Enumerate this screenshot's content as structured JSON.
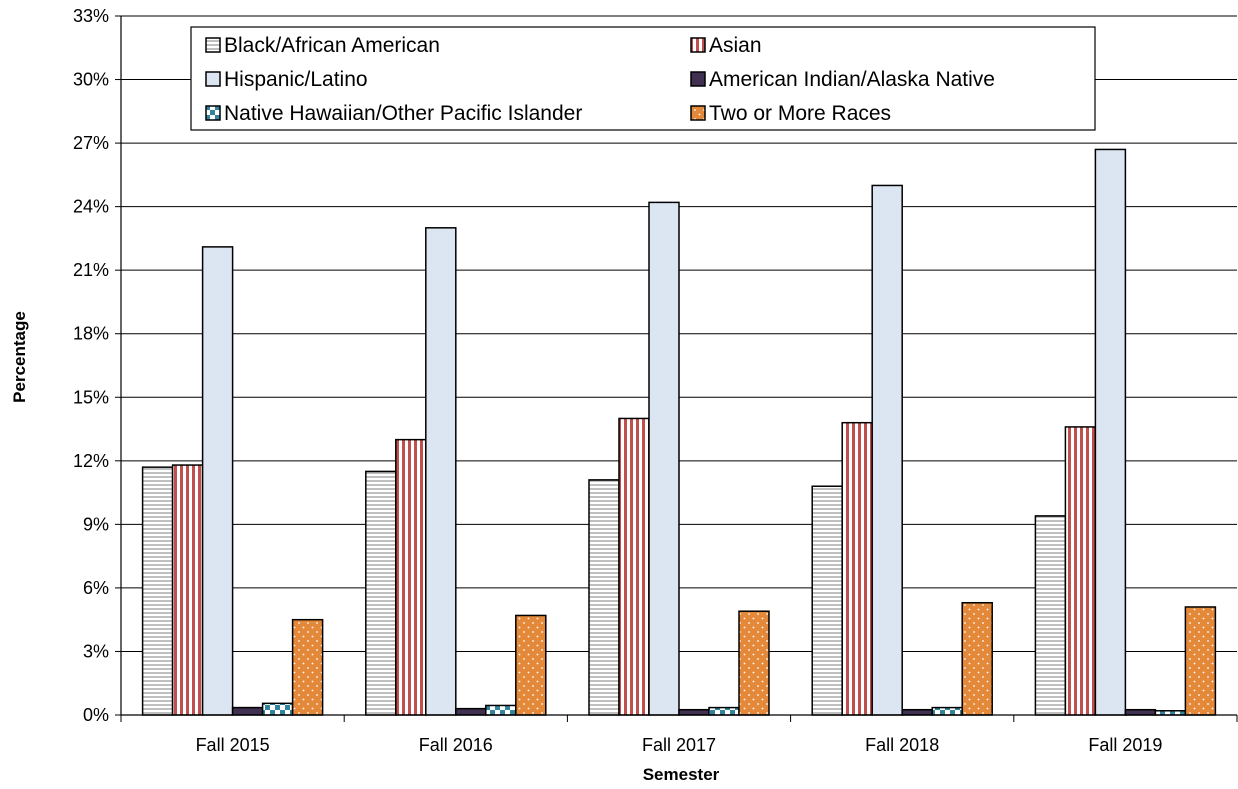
{
  "chart_data": {
    "type": "bar",
    "title": "",
    "xlabel": "Semester",
    "ylabel": "Percentage",
    "ylim": [
      0,
      33
    ],
    "ytick_step": 3,
    "ytick_suffix": "%",
    "grid": true,
    "legend_position": "top",
    "categories": [
      "Fall 2015",
      "Fall 2016",
      "Fall 2017",
      "Fall 2018",
      "Fall 2019"
    ],
    "series": [
      {
        "name": "Black/African American",
        "values": [
          11.7,
          11.5,
          11.1,
          10.8,
          9.4
        ],
        "color": "#ffffff",
        "pattern": "horizontal-lines"
      },
      {
        "name": "Asian",
        "values": [
          11.8,
          13.0,
          14.0,
          13.8,
          13.6
        ],
        "color": "#c0504d",
        "pattern": "vertical-stripes"
      },
      {
        "name": "Hispanic/Latino",
        "values": [
          22.1,
          23.0,
          24.2,
          25.0,
          26.7
        ],
        "color": "#dce6f2",
        "pattern": "solid"
      },
      {
        "name": "American Indian/Alaska Native",
        "values": [
          0.35,
          0.3,
          0.25,
          0.25,
          0.25
        ],
        "color": "#403152",
        "pattern": "solid"
      },
      {
        "name": "Native Hawaiian/Other Pacific Islander",
        "values": [
          0.55,
          0.45,
          0.35,
          0.35,
          0.2
        ],
        "color": "#31849b",
        "pattern": "checker"
      },
      {
        "name": "Two or More Races",
        "values": [
          4.5,
          4.7,
          4.9,
          5.3,
          5.1
        ],
        "color": "#e4883a",
        "pattern": "dots"
      }
    ]
  }
}
